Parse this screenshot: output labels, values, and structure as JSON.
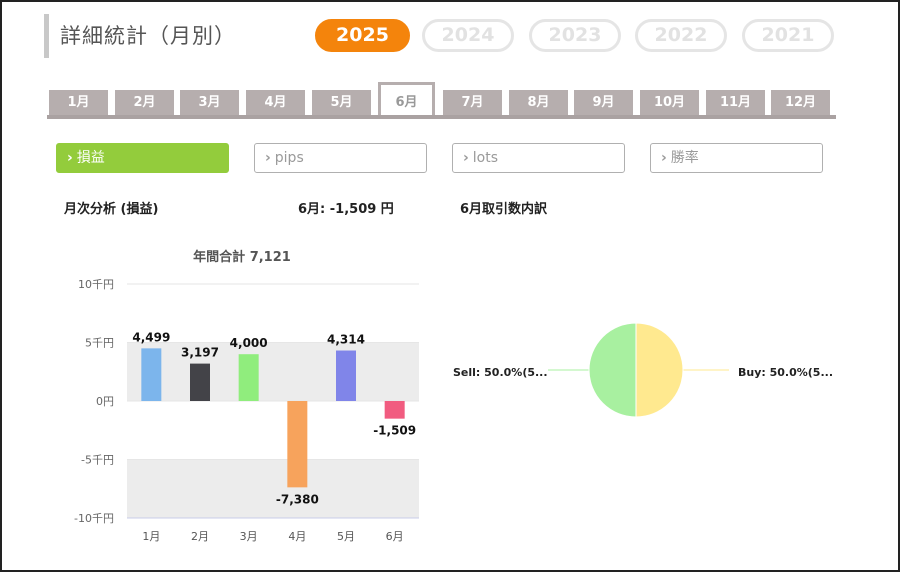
{
  "page": {
    "title": "詳細統計（月別）"
  },
  "years": [
    "2025",
    "2024",
    "2023",
    "2022",
    "2021"
  ],
  "selected_year": "2025",
  "months": [
    "1月",
    "2月",
    "3月",
    "4月",
    "5月",
    "6月",
    "7月",
    "8月",
    "9月",
    "10月",
    "11月",
    "12月"
  ],
  "selected_month": "6月",
  "filters": [
    {
      "chev": "›",
      "label": "損益",
      "active": true
    },
    {
      "chev": "›",
      "label": "pips",
      "active": false
    },
    {
      "chev": "›",
      "label": "lots",
      "active": false
    },
    {
      "chev": "›",
      "label": "勝率",
      "active": false
    }
  ],
  "monthly": {
    "heading": "月次分析 (損益)",
    "current": "6月:  -1,509 円",
    "annual_total": "年間合計 7,121"
  },
  "trades": {
    "heading": "6月取引数内訳",
    "sell_label": "Sell: 50.0%(5...",
    "buy_label": "Buy: 50.0%(5..."
  },
  "chart_data": [
    {
      "type": "bar",
      "title": "年間合計 7,121",
      "categories": [
        "1月",
        "2月",
        "3月",
        "4月",
        "5月",
        "6月"
      ],
      "values": [
        4499,
        3197,
        4000,
        -7380,
        4314,
        -1509
      ],
      "value_labels": [
        "4,499",
        "3,197",
        "4,000",
        "-7,380",
        "4,314",
        "-1,509"
      ],
      "colors": [
        "#7cb5ec",
        "#434348",
        "#90ed7d",
        "#f7a35c",
        "#8085e9",
        "#f15c80"
      ],
      "y_ticks": [
        10000,
        5000,
        0,
        -5000,
        -10000
      ],
      "y_tick_labels": [
        "10千円",
        "5千円",
        "0円",
        "-5千円",
        "-10千円"
      ],
      "ylim": [
        -10000,
        10000
      ],
      "band_color": "#ececec",
      "grid": true
    },
    {
      "type": "pie",
      "categories": [
        "Sell",
        "Buy"
      ],
      "values": [
        50.0,
        50.0
      ],
      "labels": [
        "Sell: 50.0%(5...",
        "Buy: 50.0%(5..."
      ],
      "colors": [
        "#a8f0a0",
        "#ffe98f"
      ]
    }
  ]
}
